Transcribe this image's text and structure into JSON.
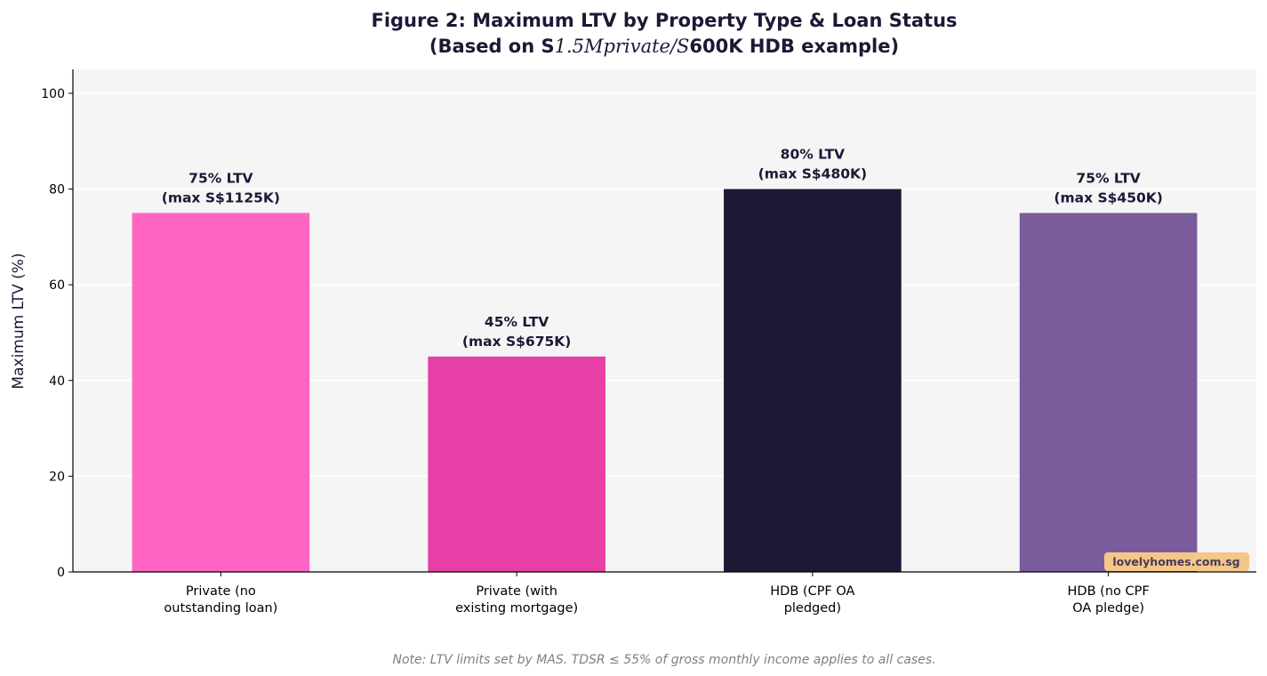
{
  "chart_data": {
    "type": "bar",
    "title_line1": "Figure 2: Maximum LTV by Property Type & Loan Status",
    "title_line2": {
      "prefix": "(Based on S",
      "math": "1.5Mprivate/S",
      "suffix": "600K HDB example)"
    },
    "xlabel": "",
    "ylabel": "Maximum LTV (%)",
    "ylim": [
      0,
      105
    ],
    "yticks": [
      0,
      20,
      40,
      60,
      80,
      100
    ],
    "grid": "horizontal",
    "categories": [
      [
        "Private (no",
        "outstanding loan)"
      ],
      [
        "Private (with",
        "existing mortgage)"
      ],
      [
        "HDB (CPF OA",
        "pledged)"
      ],
      [
        "HDB (no CPF",
        "OA pledge)"
      ]
    ],
    "values": [
      75,
      45,
      80,
      75
    ],
    "bar_labels": [
      [
        "75% LTV",
        "(max S$1125K)"
      ],
      [
        "45% LTV",
        "(max S$675K)"
      ],
      [
        "80% LTV",
        "(max S$480K)"
      ],
      [
        "75% LTV",
        "(max S$450K)"
      ]
    ],
    "colors": [
      "#ff66c4",
      "#e640a6",
      "#1c1836",
      "#7a5c9c"
    ],
    "plot_background": "#f5f5f5",
    "note": "Note: LTV limits set by MAS. TDSR ≤ 55% of gross monthly income applies to all cases.",
    "watermark": "lovelyhomes.com.sg",
    "watermark_color": "#f5c68a"
  }
}
